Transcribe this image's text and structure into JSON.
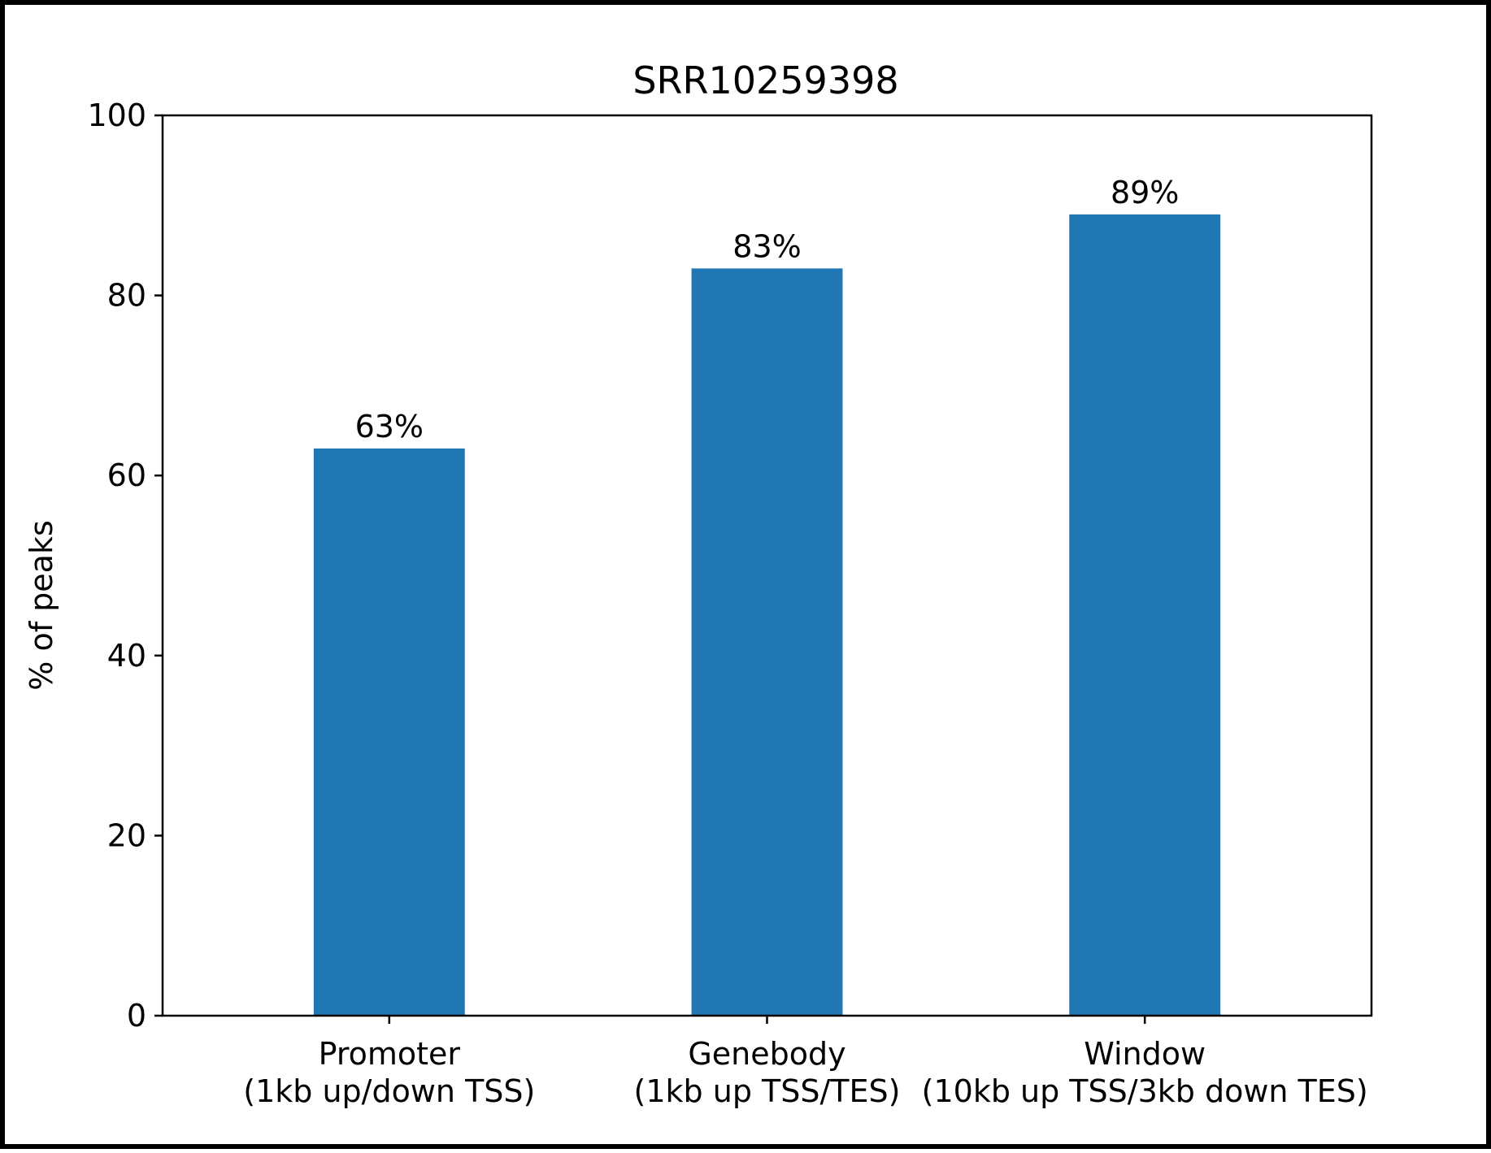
{
  "chart_data": {
    "type": "bar",
    "title": "SRR10259398",
    "xlabel": "",
    "ylabel": "% of peaks",
    "ylim": [
      0,
      100
    ],
    "yticks": [
      0,
      20,
      40,
      60,
      80,
      100
    ],
    "categories": [
      [
        "Promoter",
        "(1kb up/down TSS)"
      ],
      [
        "Genebody",
        "(1kb up TSS/TES)"
      ],
      [
        "Window",
        "(10kb up TSS/3kb down TES)"
      ]
    ],
    "values": [
      63,
      83,
      89
    ],
    "data_labels": [
      "63%",
      "83%",
      "89%"
    ],
    "bar_color": "#2077b4",
    "grid": false,
    "legend": "none"
  }
}
